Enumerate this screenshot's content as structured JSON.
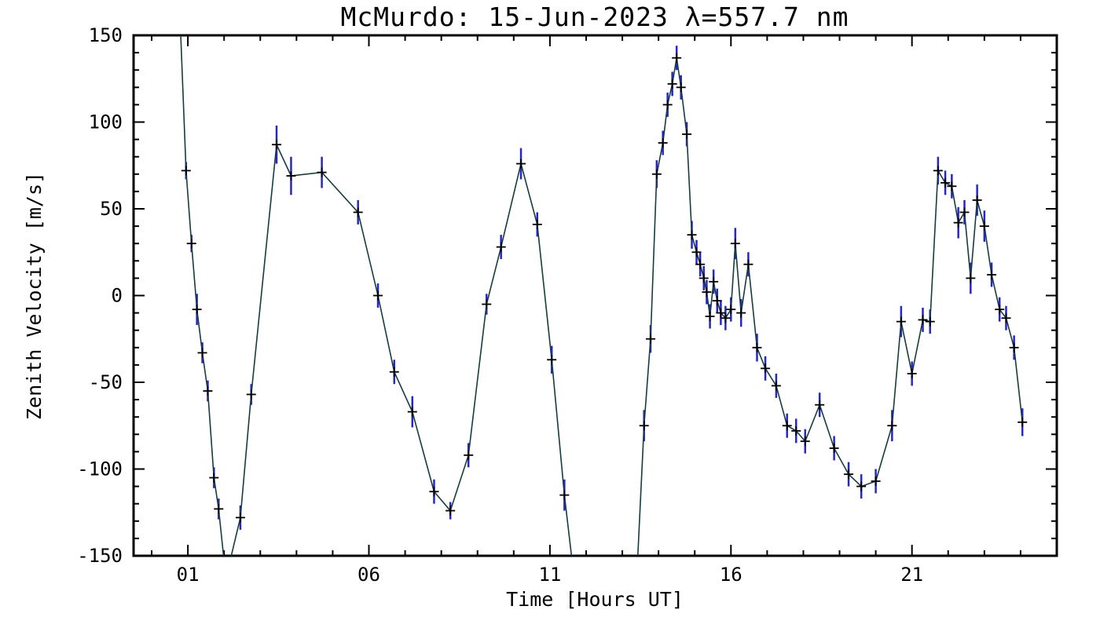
{
  "page": {
    "background": "#ffffff"
  },
  "chart_data": {
    "type": "line",
    "title": "McMurdo: 15-Jun-2023 λ=557.7 nm",
    "xlabel": "Time [Hours UT]",
    "ylabel": "Zenith Velocity [m/s]",
    "xlim": [
      -0.5,
      25
    ],
    "ylim": [
      -150,
      150
    ],
    "xticks": [
      1,
      6,
      11,
      16,
      21
    ],
    "xtick_labels": [
      "01",
      "06",
      "11",
      "16",
      "21"
    ],
    "x_minor_step": 1,
    "yticks": [
      -150,
      -100,
      -50,
      0,
      50,
      100,
      150
    ],
    "ytick_labels": [
      "-150",
      "-100",
      "-50",
      "0",
      "50",
      "100",
      "150"
    ],
    "y_minor_step": 10,
    "grid": false,
    "legend": "none",
    "axis_color": "#000000",
    "series": [
      {
        "name": "zenith_velocity",
        "marker": "plus",
        "marker_color": "#000000",
        "line_color": "#173c3e",
        "error_bar_color": "#2626cc",
        "points": [
          [
            0.78,
            162,
            8
          ],
          [
            0.95,
            72,
            5
          ],
          [
            1.1,
            30,
            5
          ],
          [
            1.25,
            -8,
            9
          ],
          [
            1.4,
            -33,
            6
          ],
          [
            1.55,
            -55,
            6
          ],
          [
            1.72,
            -105,
            6
          ],
          [
            1.85,
            -123,
            6
          ],
          [
            2.05,
            -163,
            7
          ],
          [
            2.45,
            -128,
            7
          ],
          [
            2.75,
            -57,
            6
          ],
          [
            3.45,
            87,
            11
          ],
          [
            3.85,
            69,
            11
          ],
          [
            4.7,
            71,
            9
          ],
          [
            5.7,
            48,
            7
          ],
          [
            6.25,
            0,
            7
          ],
          [
            6.7,
            -44,
            7
          ],
          [
            7.2,
            -67,
            9
          ],
          [
            7.8,
            -113,
            7
          ],
          [
            8.25,
            -124,
            5
          ],
          [
            8.75,
            -92,
            7
          ],
          [
            9.25,
            -5,
            6
          ],
          [
            9.65,
            28,
            7
          ],
          [
            10.2,
            76,
            9
          ],
          [
            10.65,
            41,
            7
          ],
          [
            11.05,
            -37,
            8
          ],
          [
            11.4,
            -115,
            9
          ],
          [
            11.68,
            -165,
            8
          ],
          [
            13.4,
            -162,
            9
          ],
          [
            13.6,
            -75,
            9
          ],
          [
            13.78,
            -25,
            8
          ],
          [
            13.95,
            70,
            8
          ],
          [
            14.12,
            88,
            7
          ],
          [
            14.25,
            110,
            7
          ],
          [
            14.38,
            122,
            7
          ],
          [
            14.5,
            137,
            7
          ],
          [
            14.62,
            120,
            7
          ],
          [
            14.78,
            93,
            7
          ],
          [
            14.92,
            35,
            8
          ],
          [
            15.05,
            25,
            7
          ],
          [
            15.15,
            18,
            7
          ],
          [
            15.25,
            10,
            7
          ],
          [
            15.33,
            2,
            7
          ],
          [
            15.42,
            -12,
            7
          ],
          [
            15.52,
            8,
            7
          ],
          [
            15.62,
            -3,
            7
          ],
          [
            15.72,
            -10,
            7
          ],
          [
            15.85,
            -13,
            7
          ],
          [
            16.0,
            -8,
            7
          ],
          [
            16.12,
            30,
            9
          ],
          [
            16.28,
            -10,
            8
          ],
          [
            16.48,
            18,
            7
          ],
          [
            16.72,
            -30,
            8
          ],
          [
            16.95,
            -42,
            7
          ],
          [
            17.25,
            -52,
            7
          ],
          [
            17.55,
            -75,
            7
          ],
          [
            17.8,
            -78,
            7
          ],
          [
            18.05,
            -84,
            7
          ],
          [
            18.45,
            -63,
            7
          ],
          [
            18.85,
            -88,
            7
          ],
          [
            19.25,
            -103,
            7
          ],
          [
            19.6,
            -110,
            7
          ],
          [
            20.0,
            -107,
            7
          ],
          [
            20.45,
            -75,
            9
          ],
          [
            20.7,
            -15,
            9
          ],
          [
            21.0,
            -45,
            7
          ],
          [
            21.3,
            -14,
            7
          ],
          [
            21.5,
            -15,
            7
          ],
          [
            21.72,
            72,
            8
          ],
          [
            21.92,
            65,
            7
          ],
          [
            22.1,
            63,
            7
          ],
          [
            22.28,
            42,
            9
          ],
          [
            22.45,
            48,
            7
          ],
          [
            22.62,
            10,
            9
          ],
          [
            22.8,
            55,
            9
          ],
          [
            23.0,
            40,
            9
          ],
          [
            23.2,
            12,
            7
          ],
          [
            23.42,
            -8,
            7
          ],
          [
            23.6,
            -13,
            7
          ],
          [
            23.82,
            -30,
            7
          ],
          [
            24.05,
            -73,
            8
          ]
        ]
      }
    ]
  }
}
